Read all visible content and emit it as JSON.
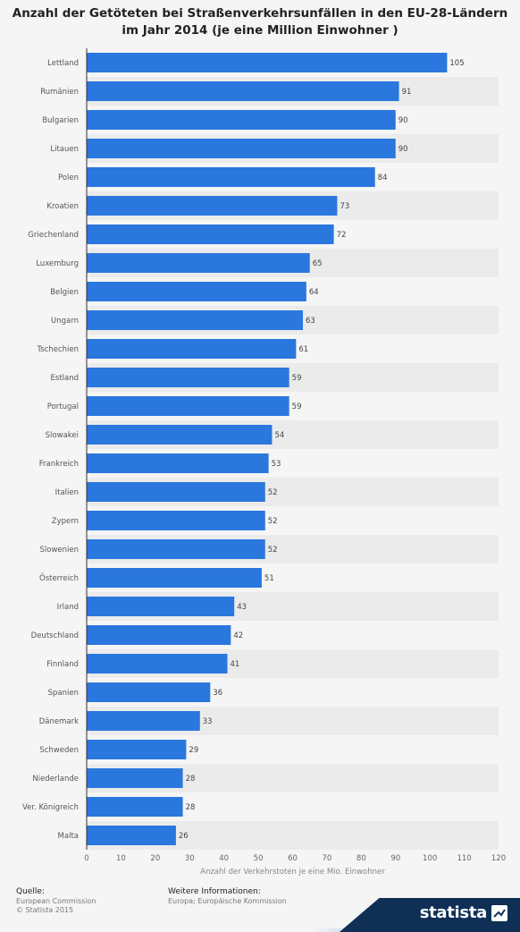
{
  "title": "Anzahl der Getöteten bei Straßenverkehrsunfällen in den EU-28-Ländern im Jahr 2014 (je eine Million Einwohner )",
  "chart_data": {
    "type": "bar",
    "orientation": "horizontal",
    "categories": [
      "Lettland",
      "Rumänien",
      "Bulgarien",
      "Litauen",
      "Polen",
      "Kroatien",
      "Griechenland",
      "Luxemburg",
      "Belgien",
      "Ungarn",
      "Tschechien",
      "Estland",
      "Portugal",
      "Slowakei",
      "Frankreich",
      "Italien",
      "Zypern",
      "Slowenien",
      "Österreich",
      "Irland",
      "Deutschland",
      "Finnland",
      "Spanien",
      "Dänemark",
      "Schweden",
      "Niederlande",
      "Ver. Königreich",
      "Malta"
    ],
    "values": [
      105,
      91,
      90,
      90,
      84,
      73,
      72,
      65,
      64,
      63,
      61,
      59,
      59,
      54,
      53,
      52,
      52,
      52,
      51,
      43,
      42,
      41,
      36,
      33,
      29,
      28,
      28,
      26
    ],
    "xlabel": "Anzahl der Verkehrstoten je eine Mio. Einwohner",
    "xlim": [
      0,
      120
    ],
    "xticks": [
      0,
      10,
      20,
      30,
      40,
      50,
      60,
      70,
      80,
      90,
      100,
      110,
      120
    ],
    "bar_color": "#2a77de",
    "stripe_color": "#ebebeb",
    "grid": false,
    "value_labels": true
  },
  "footer": {
    "source_heading": "Quelle:",
    "source_lines": [
      "European Commission",
      "© Statista 2015"
    ],
    "info_heading": "Weitere Informationen:",
    "info_lines": [
      "Europa; Europäische Kommission"
    ],
    "brand": "statista"
  }
}
